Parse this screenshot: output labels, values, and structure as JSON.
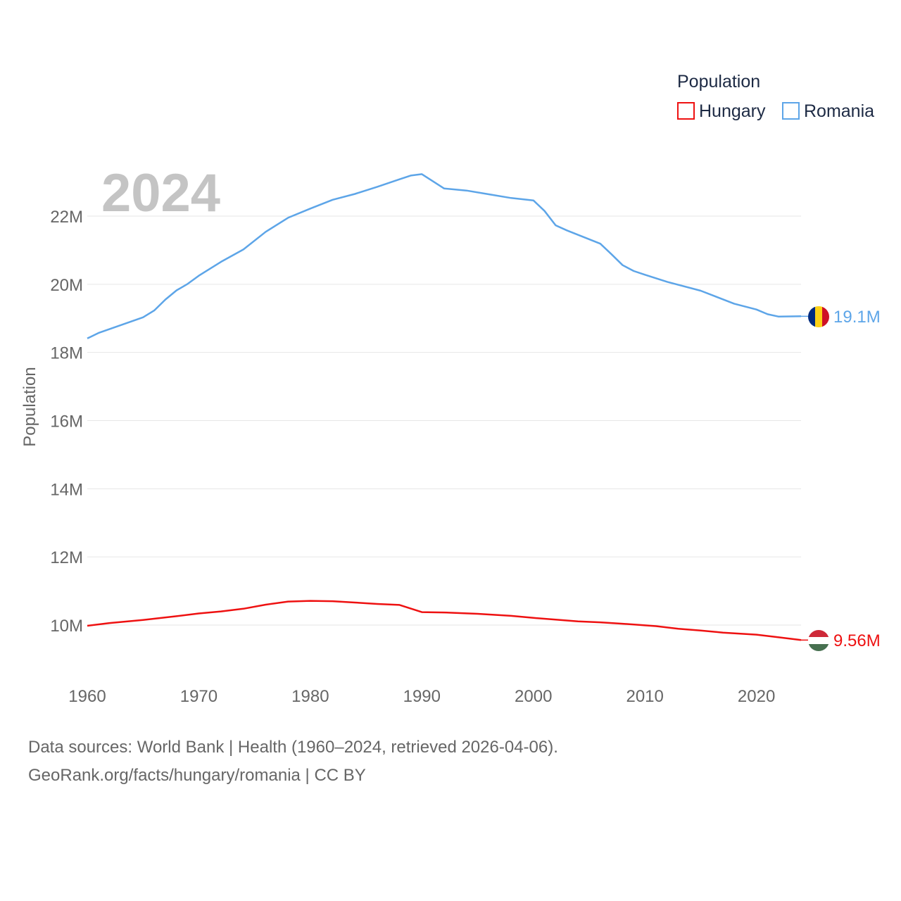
{
  "legend": {
    "title": "Population",
    "hungary": "Hungary",
    "romania": "Romania"
  },
  "year_label": "2024",
  "source": {
    "line1": "Data sources: World Bank | Health (1960–2024, retrieved 2026-04-06).",
    "line2": "GeoRank.org/facts/hungary/romania | CC BY"
  },
  "colors": {
    "hungary": "#ee1111",
    "romania": "#5da5e8"
  },
  "chart_data": {
    "type": "line",
    "title": "Population",
    "xlabel": "",
    "ylabel": "Population",
    "xlim": [
      1960,
      2024
    ],
    "ylim": [
      9000000,
      23600000
    ],
    "x_ticks": [
      1960,
      1970,
      1980,
      1990,
      2000,
      2010,
      2020
    ],
    "y_ticks": [
      {
        "value": 10000000,
        "label": "10M"
      },
      {
        "value": 12000000,
        "label": "12M"
      },
      {
        "value": 14000000,
        "label": "14M"
      },
      {
        "value": 16000000,
        "label": "16M"
      },
      {
        "value": 18000000,
        "label": "18M"
      },
      {
        "value": 20000000,
        "label": "20M"
      },
      {
        "value": 22000000,
        "label": "22M"
      }
    ],
    "series": [
      {
        "name": "Romania",
        "key": "romania",
        "end_label": "19.1M",
        "points": [
          [
            1960,
            18410000
          ],
          [
            1961,
            18570000
          ],
          [
            1963,
            18800000
          ],
          [
            1965,
            19030000
          ],
          [
            1966,
            19230000
          ],
          [
            1967,
            19550000
          ],
          [
            1968,
            19820000
          ],
          [
            1969,
            20010000
          ],
          [
            1970,
            20250000
          ],
          [
            1972,
            20660000
          ],
          [
            1974,
            21020000
          ],
          [
            1976,
            21540000
          ],
          [
            1978,
            21950000
          ],
          [
            1980,
            22220000
          ],
          [
            1982,
            22480000
          ],
          [
            1984,
            22650000
          ],
          [
            1986,
            22860000
          ],
          [
            1988,
            23080000
          ],
          [
            1989,
            23190000
          ],
          [
            1990,
            23230000
          ],
          [
            1992,
            22810000
          ],
          [
            1994,
            22750000
          ],
          [
            1996,
            22640000
          ],
          [
            1998,
            22530000
          ],
          [
            2000,
            22460000
          ],
          [
            2001,
            22150000
          ],
          [
            2002,
            21730000
          ],
          [
            2003,
            21580000
          ],
          [
            2006,
            21190000
          ],
          [
            2007,
            20880000
          ],
          [
            2008,
            20560000
          ],
          [
            2009,
            20390000
          ],
          [
            2010,
            20280000
          ],
          [
            2012,
            20070000
          ],
          [
            2015,
            19810000
          ],
          [
            2018,
            19430000
          ],
          [
            2020,
            19260000
          ],
          [
            2021,
            19120000
          ],
          [
            2022,
            19050000
          ],
          [
            2024,
            19060000
          ]
        ]
      },
      {
        "name": "Hungary",
        "key": "hungary",
        "end_label": "9.56M",
        "points": [
          [
            1960,
            9980000
          ],
          [
            1962,
            10060000
          ],
          [
            1965,
            10150000
          ],
          [
            1968,
            10260000
          ],
          [
            1970,
            10340000
          ],
          [
            1972,
            10400000
          ],
          [
            1974,
            10480000
          ],
          [
            1976,
            10600000
          ],
          [
            1978,
            10690000
          ],
          [
            1980,
            10710000
          ],
          [
            1982,
            10700000
          ],
          [
            1984,
            10660000
          ],
          [
            1986,
            10620000
          ],
          [
            1988,
            10590000
          ],
          [
            1990,
            10380000
          ],
          [
            1992,
            10370000
          ],
          [
            1995,
            10330000
          ],
          [
            1998,
            10270000
          ],
          [
            2000,
            10210000
          ],
          [
            2002,
            10160000
          ],
          [
            2004,
            10110000
          ],
          [
            2006,
            10080000
          ],
          [
            2008,
            10040000
          ],
          [
            2011,
            9970000
          ],
          [
            2013,
            9890000
          ],
          [
            2015,
            9840000
          ],
          [
            2017,
            9780000
          ],
          [
            2020,
            9720000
          ],
          [
            2022,
            9640000
          ],
          [
            2024,
            9560000
          ]
        ]
      }
    ]
  }
}
